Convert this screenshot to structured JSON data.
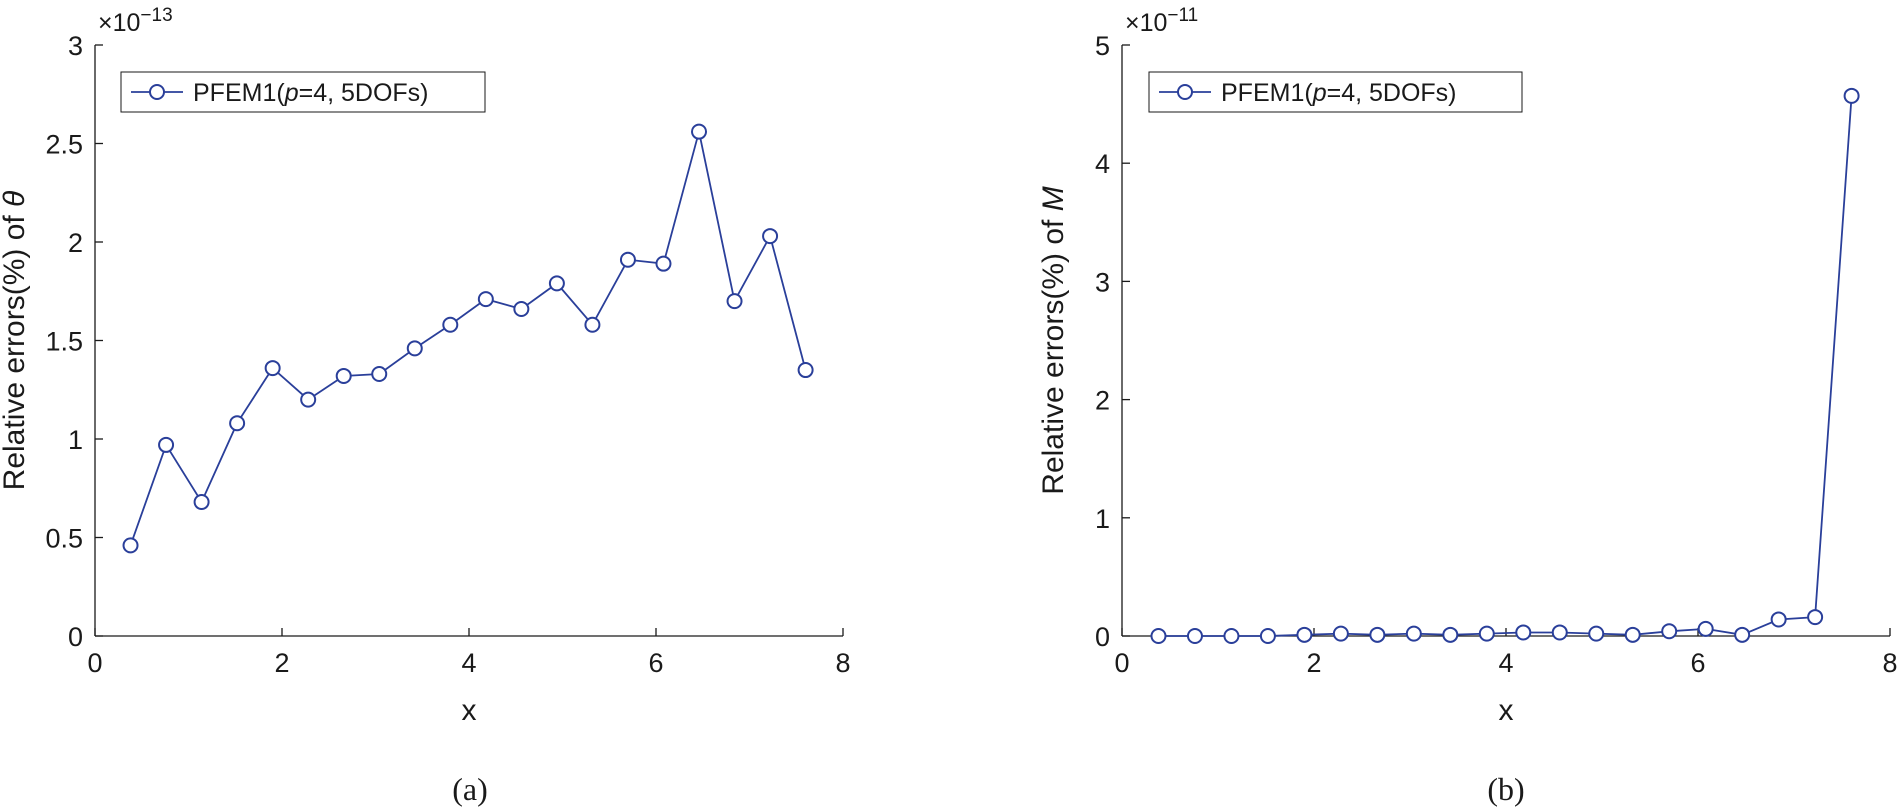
{
  "chart_data": [
    {
      "type": "line",
      "panel": "a",
      "caption": "(a)",
      "xlabel": "x",
      "ylabel_prefix": "Relative errors(%) of ",
      "ylabel_symbol": "θ",
      "y_multiplier": "×10",
      "y_exponent": "−13",
      "xlim": [
        0,
        8
      ],
      "ylim": [
        0,
        3
      ],
      "xticks": [
        0,
        2,
        4,
        6,
        8
      ],
      "xtick_labels": [
        "0",
        "2",
        "4",
        "6",
        "8"
      ],
      "yticks": [
        0,
        0.5,
        1,
        1.5,
        2,
        2.5,
        3
      ],
      "ytick_labels": [
        "0",
        "0.5",
        "1",
        "1.5",
        "2",
        "2.5",
        "3"
      ],
      "legend": {
        "placement": "top-left",
        "label_prefix": "PFEM1(",
        "label_p": "p",
        "label_suffix": "=4, 5DOFs)"
      },
      "series": [
        {
          "x": [
            0.38,
            0.76,
            1.14,
            1.52,
            1.9,
            2.28,
            2.66,
            3.04,
            3.42,
            3.8,
            4.18,
            4.56,
            4.94,
            5.32,
            5.7,
            6.08,
            6.46,
            6.84,
            7.22,
            7.6
          ],
          "y": [
            0.46,
            0.97,
            0.68,
            1.08,
            1.36,
            1.2,
            1.32,
            1.33,
            1.46,
            1.58,
            1.71,
            1.66,
            1.79,
            1.58,
            1.91,
            1.89,
            2.56,
            1.7,
            2.03,
            1.35
          ]
        }
      ],
      "color": "#2a3f9a"
    },
    {
      "type": "line",
      "panel": "b",
      "caption": "(b)",
      "xlabel": "x",
      "ylabel_prefix": "Relative errors(%) of ",
      "ylabel_symbol": "M",
      "y_multiplier": "×10",
      "y_exponent": "−11",
      "xlim": [
        0,
        8
      ],
      "ylim": [
        0,
        5
      ],
      "xticks": [
        0,
        2,
        4,
        6,
        8
      ],
      "xtick_labels": [
        "0",
        "2",
        "4",
        "6",
        "8"
      ],
      "yticks": [
        0,
        1,
        2,
        3,
        4,
        5
      ],
      "ytick_labels": [
        "0",
        "1",
        "2",
        "3",
        "4",
        "5"
      ],
      "legend": {
        "placement": "top-left",
        "label_prefix": "PFEM1(",
        "label_p": "p",
        "label_suffix": "=4, 5DOFs)"
      },
      "series": [
        {
          "x": [
            0.38,
            0.76,
            1.14,
            1.52,
            1.9,
            2.28,
            2.66,
            3.04,
            3.42,
            3.8,
            4.18,
            4.56,
            4.94,
            5.32,
            5.7,
            6.08,
            6.46,
            6.84,
            7.22,
            7.6
          ],
          "y": [
            0.0,
            0.0,
            0.0,
            0.0,
            0.01,
            0.02,
            0.01,
            0.02,
            0.01,
            0.02,
            0.03,
            0.03,
            0.02,
            0.01,
            0.04,
            0.06,
            0.01,
            0.14,
            0.16,
            4.57
          ]
        }
      ],
      "color": "#2a3f9a"
    }
  ]
}
